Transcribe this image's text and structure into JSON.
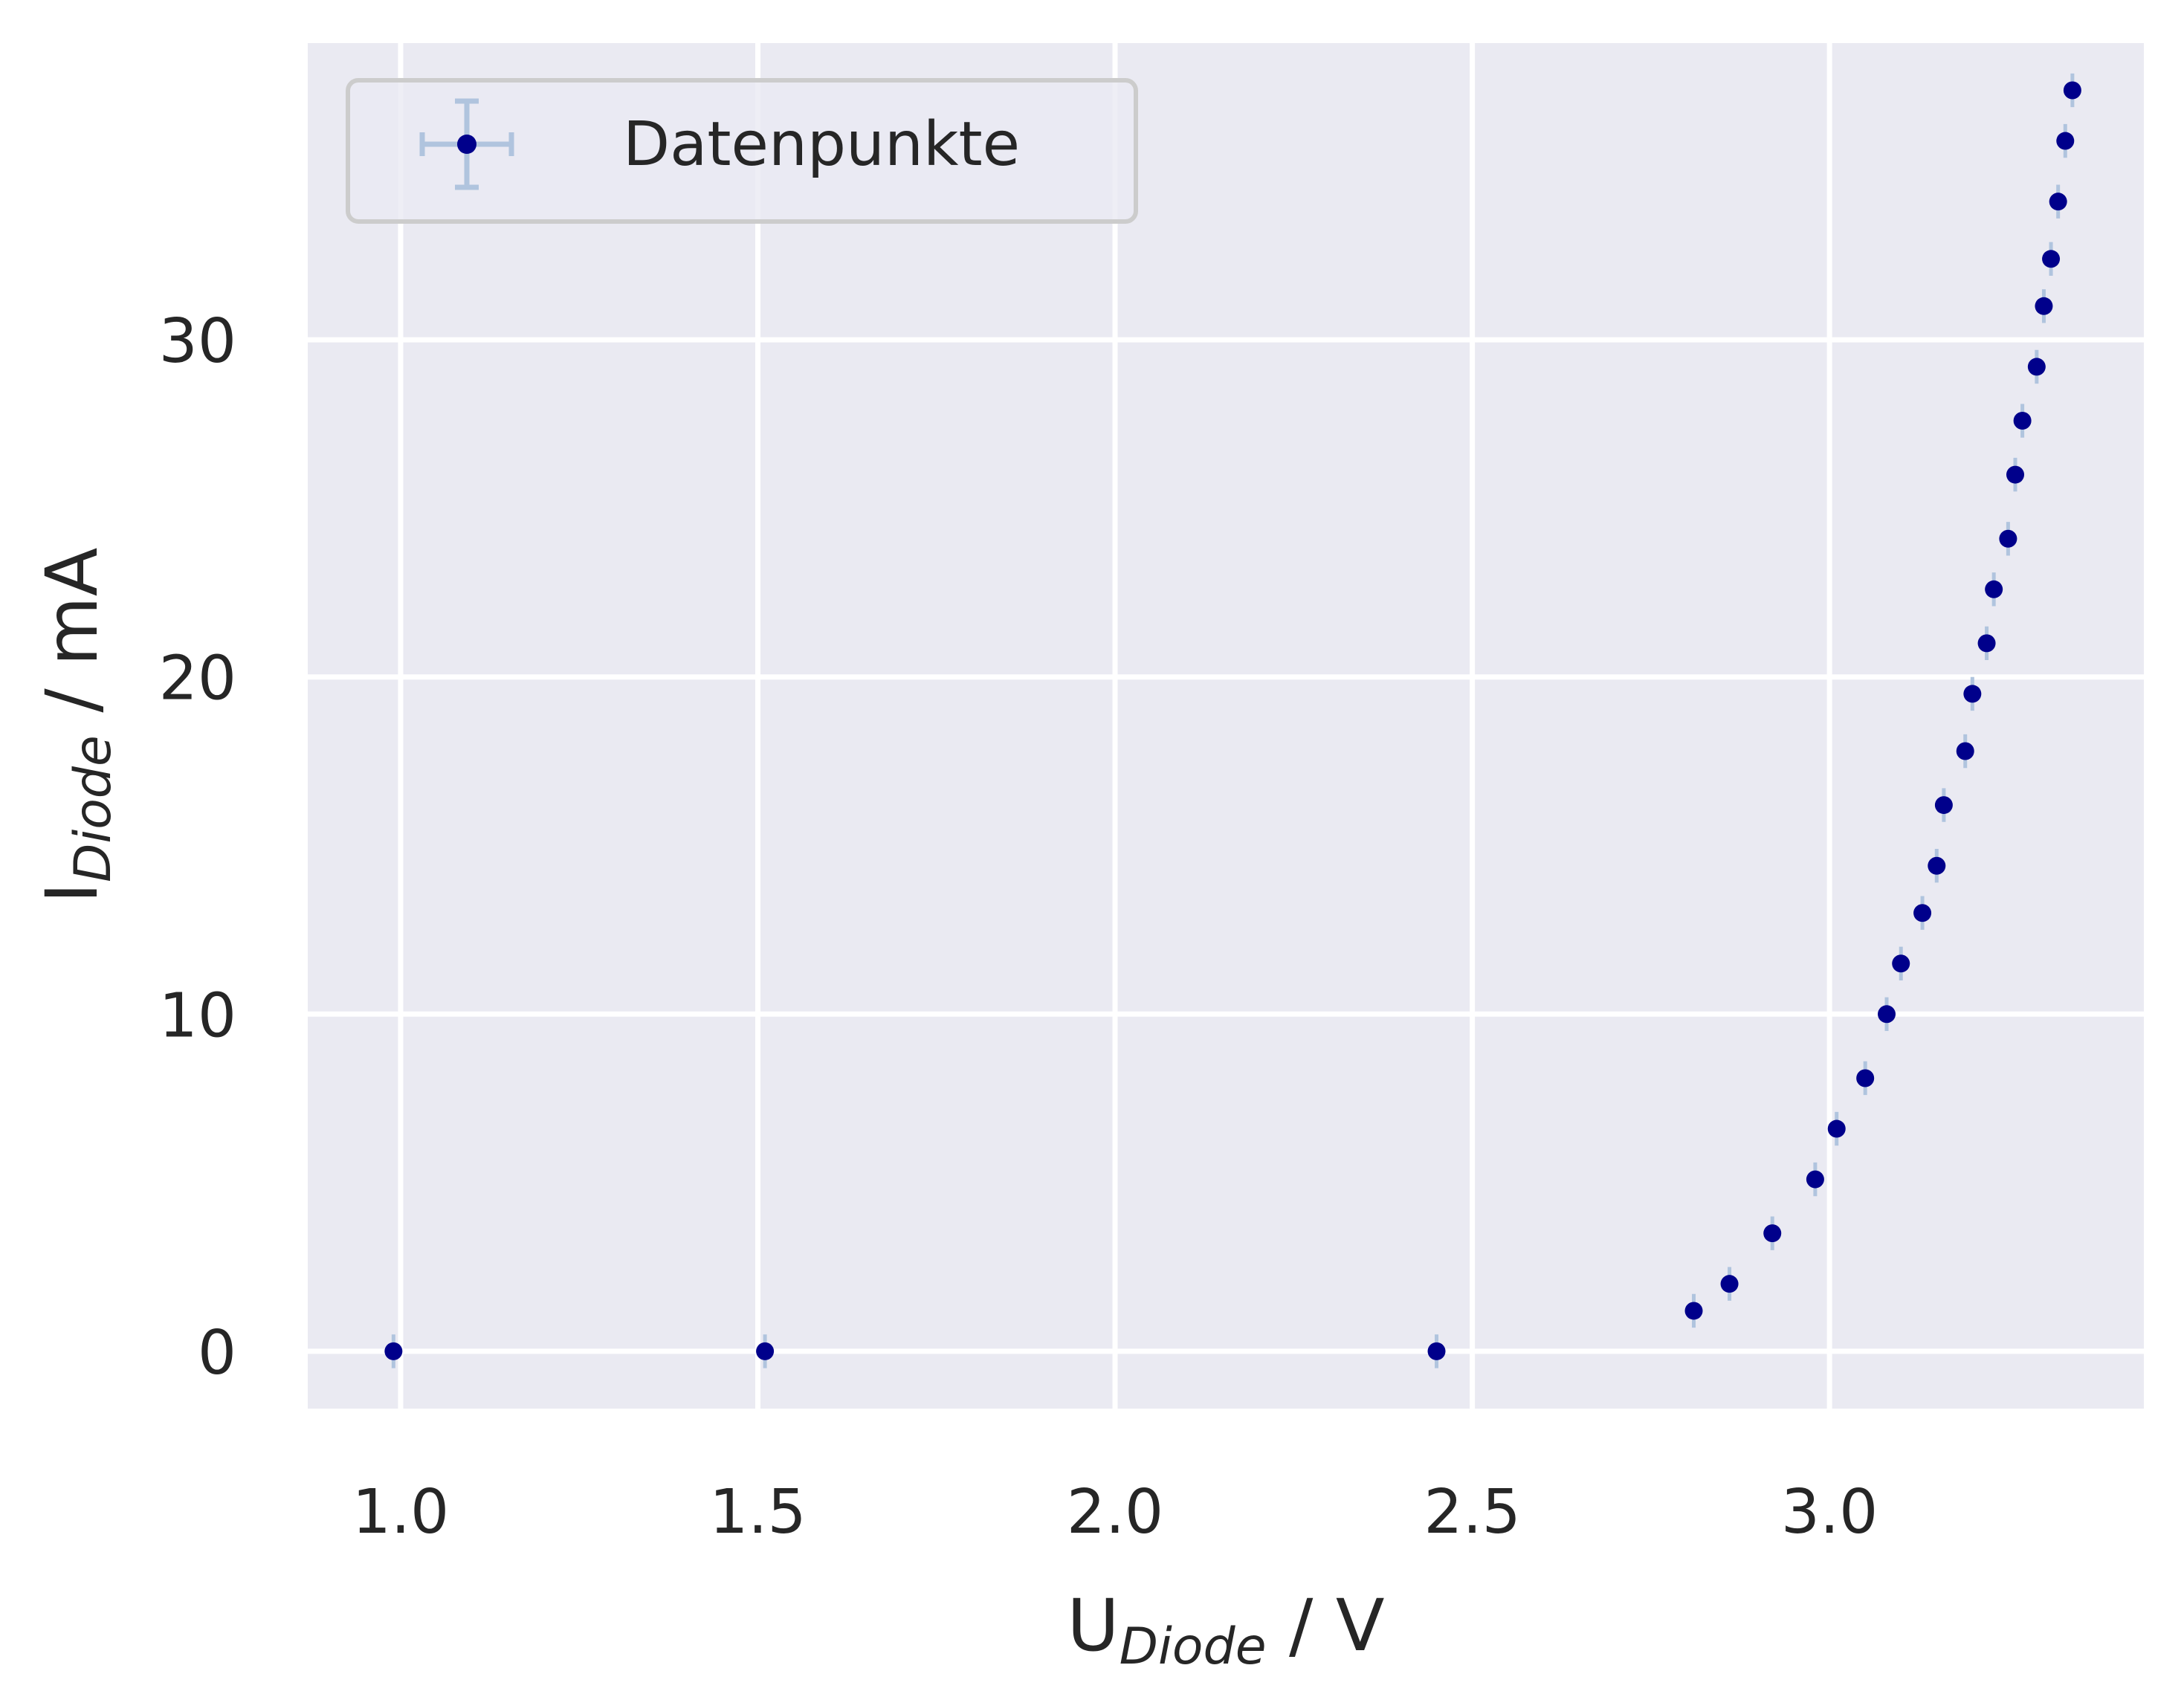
{
  "chart_data": {
    "type": "scatter",
    "xlabel": {
      "main": "U",
      "sub": "Diode",
      "unit": " / V"
    },
    "ylabel": {
      "main": "I",
      "sub": "Diode",
      "unit": " / mA"
    },
    "xlim": [
      0.87,
      3.44
    ],
    "ylim": [
      -1.7,
      38.8
    ],
    "xticks": [
      1.0,
      1.5,
      2.0,
      2.5,
      3.0
    ],
    "yticks": [
      0,
      10,
      20,
      30
    ],
    "xtick_labels": [
      "1.0",
      "1.5",
      "2.0",
      "2.5",
      "3.0"
    ],
    "ytick_labels": [
      "0",
      "10",
      "20",
      "30"
    ],
    "grid": true,
    "legend_position": "upper-left",
    "colors": {
      "background": "#eaeaf2",
      "grid": "#ffffff",
      "marker": "#00008b",
      "errorbar": "#b0c4de",
      "legend_border": "#cccccc"
    },
    "series": [
      {
        "name": "Datenpunkte",
        "x_err": 0.01,
        "y_err": 0.5,
        "points": [
          [
            0.99,
            0.0
          ],
          [
            1.51,
            0.0
          ],
          [
            2.45,
            0.0
          ],
          [
            2.81,
            1.2
          ],
          [
            2.86,
            2.0
          ],
          [
            2.92,
            3.5
          ],
          [
            2.98,
            5.1
          ],
          [
            3.01,
            6.6
          ],
          [
            3.05,
            8.1
          ],
          [
            3.08,
            10.0
          ],
          [
            3.1,
            11.5
          ],
          [
            3.13,
            13.0
          ],
          [
            3.15,
            14.4
          ],
          [
            3.16,
            16.2
          ],
          [
            3.19,
            17.8
          ],
          [
            3.2,
            19.5
          ],
          [
            3.22,
            21.0
          ],
          [
            3.23,
            22.6
          ],
          [
            3.25,
            24.1
          ],
          [
            3.26,
            26.0
          ],
          [
            3.27,
            27.6
          ],
          [
            3.29,
            29.2
          ],
          [
            3.3,
            31.0
          ],
          [
            3.31,
            32.4
          ],
          [
            3.32,
            34.1
          ],
          [
            3.33,
            35.9
          ],
          [
            3.34,
            37.4
          ]
        ]
      }
    ]
  }
}
